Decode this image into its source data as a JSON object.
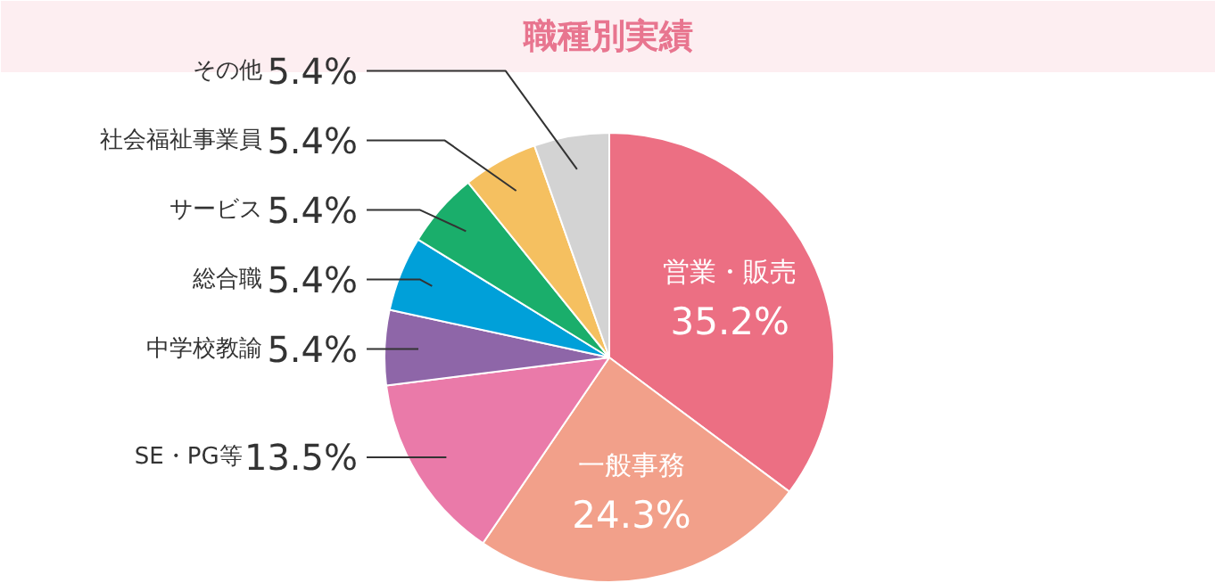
{
  "chart_data": {
    "type": "pie",
    "title": "職種別実績",
    "categories": [
      "営業・販売",
      "一般事務",
      "SE・PG等",
      "中学校教諭",
      "総合職",
      "サービス",
      "社会福祉事業員",
      "その他"
    ],
    "values": [
      35.2,
      24.3,
      13.5,
      5.4,
      5.4,
      5.4,
      5.4,
      5.4
    ],
    "value_labels": [
      "35.2%",
      "24.3%",
      "13.5%",
      "5.4%",
      "5.4%",
      "5.4%",
      "5.4%",
      "5.4%"
    ],
    "colors": [
      "#ec6f83",
      "#f2a08a",
      "#ea7aa9",
      "#8e66a8",
      "#00a0d9",
      "#1aae6b",
      "#f5c060",
      "#d3d3d3"
    ]
  }
}
